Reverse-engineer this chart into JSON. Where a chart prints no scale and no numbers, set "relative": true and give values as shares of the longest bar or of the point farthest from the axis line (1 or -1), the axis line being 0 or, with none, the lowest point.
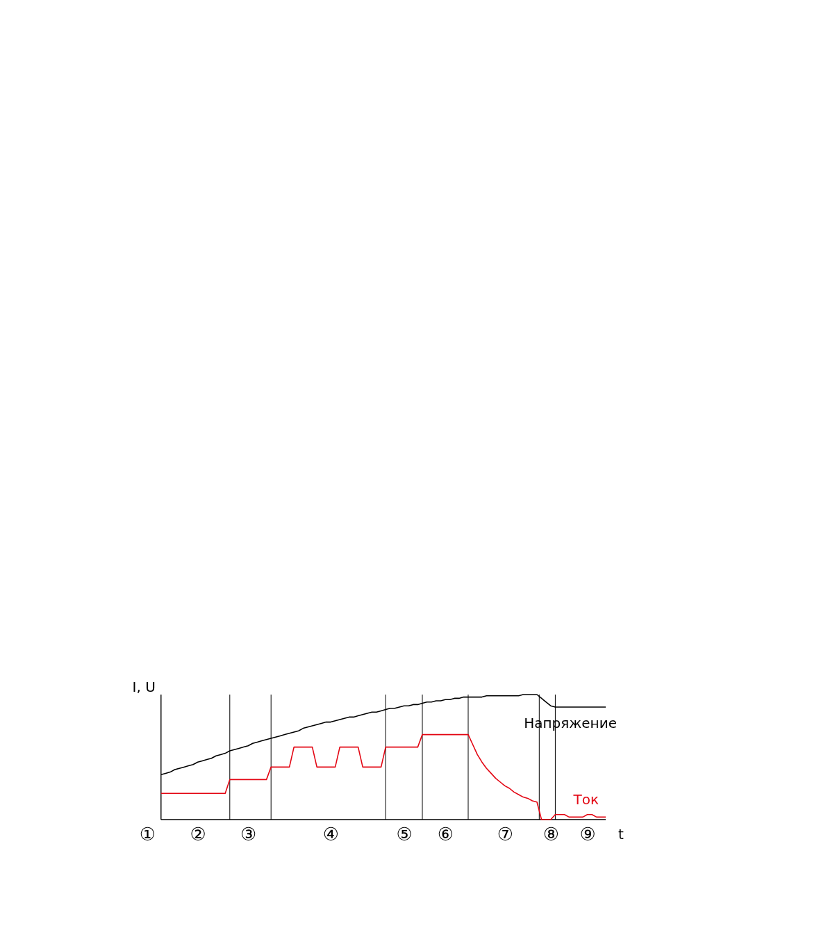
{
  "chart_data": {
    "type": "line",
    "relative": true,
    "xlabel": "t",
    "ylabel": "I, U",
    "legend": false,
    "tick_labels": "x",
    "categories": [
      "①",
      null,
      null,
      null,
      null,
      null,
      null,
      null,
      null,
      null,
      null,
      "②",
      null,
      null,
      null,
      null,
      null,
      null,
      null,
      null,
      null,
      null,
      "③",
      null,
      null,
      null,
      null,
      null,
      null,
      null,
      null,
      null,
      null,
      null,
      null,
      null,
      null,
      null,
      null,
      null,
      "④",
      null,
      null,
      null,
      null,
      null,
      null,
      null,
      null,
      null,
      null,
      null,
      null,
      null,
      null,
      null,
      "⑤",
      null,
      null,
      null,
      null,
      null,
      null,
      null,
      null,
      "⑥",
      null,
      null,
      null,
      null,
      null,
      null,
      null,
      null,
      null,
      null,
      null,
      null,
      "⑦",
      null,
      null,
      null,
      null,
      null,
      null,
      null,
      null,
      null,
      "⑧",
      null,
      null,
      null,
      null,
      null,
      null,
      null,
      "⑨",
      null,
      null,
      null,
      null
    ],
    "series": [
      {
        "name": "Напряжение",
        "color": "#000000",
        "values": [
          null,
          null,
          null,
          0.36,
          0.37,
          0.38,
          0.4,
          0.41,
          0.42,
          0.43,
          0.44,
          0.46,
          0.47,
          0.48,
          0.49,
          0.51,
          0.52,
          0.53,
          0.55,
          0.56,
          0.57,
          0.58,
          0.59,
          0.61,
          0.62,
          0.63,
          0.64,
          0.65,
          0.66,
          0.67,
          0.68,
          0.69,
          0.7,
          0.71,
          0.73,
          0.74,
          0.75,
          0.76,
          0.77,
          0.78,
          0.78,
          0.79,
          0.8,
          0.81,
          0.82,
          0.82,
          0.83,
          0.84,
          0.85,
          0.86,
          0.86,
          0.87,
          0.88,
          0.89,
          0.89,
          0.9,
          0.91,
          0.91,
          0.92,
          0.92,
          0.93,
          0.94,
          0.94,
          0.95,
          0.95,
          0.96,
          0.96,
          0.97,
          0.97,
          0.98,
          0.98,
          0.98,
          0.98,
          0.98,
          0.99,
          0.99,
          0.99,
          0.99,
          0.99,
          0.99,
          0.99,
          0.99,
          1.0,
          1.0,
          1.0,
          1.0,
          0.97,
          0.94,
          0.91,
          0.9,
          0.9,
          0.9,
          0.9,
          0.9,
          0.9,
          0.9,
          0.9,
          0.9,
          0.9,
          0.9,
          0.9
        ]
      },
      {
        "name": "Ток",
        "color": "#e30613",
        "values": [
          null,
          null,
          null,
          0.21,
          0.21,
          0.21,
          0.21,
          0.21,
          0.21,
          0.21,
          0.21,
          0.21,
          0.21,
          0.21,
          0.21,
          0.21,
          0.21,
          0.21,
          0.32,
          0.32,
          0.32,
          0.32,
          0.32,
          0.32,
          0.32,
          0.32,
          0.32,
          0.42,
          0.42,
          0.42,
          0.42,
          0.42,
          0.58,
          0.58,
          0.58,
          0.58,
          0.58,
          0.42,
          0.42,
          0.42,
          0.42,
          0.42,
          0.58,
          0.58,
          0.58,
          0.58,
          0.58,
          0.42,
          0.42,
          0.42,
          0.42,
          0.42,
          0.58,
          0.58,
          0.58,
          0.58,
          0.58,
          0.58,
          0.58,
          0.58,
          0.68,
          0.68,
          0.68,
          0.68,
          0.68,
          0.68,
          0.68,
          0.68,
          0.68,
          0.68,
          0.68,
          0.6,
          0.52,
          0.46,
          0.41,
          0.37,
          0.33,
          0.3,
          0.27,
          0.25,
          0.22,
          0.2,
          0.18,
          0.17,
          0.15,
          0.14,
          0,
          0,
          0,
          0.04,
          0.04,
          0.04,
          0.02,
          0.02,
          0.02,
          0.02,
          0.04,
          0.04,
          0.02,
          0.02,
          0.02
        ]
      }
    ]
  }
}
